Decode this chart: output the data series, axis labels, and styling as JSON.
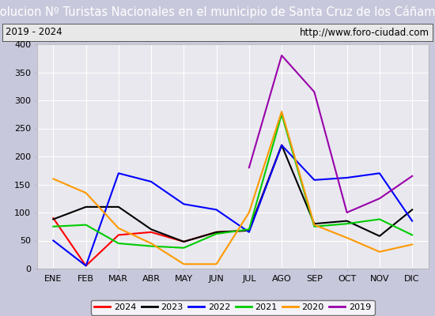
{
  "title": "Evolucion Nº Turistas Nacionales en el municipio de Santa Cruz de los Cáñamos",
  "subtitle_left": "2019 - 2024",
  "subtitle_right": "http://www.foro-ciudad.com",
  "months": [
    "ENE",
    "FEB",
    "MAR",
    "ABR",
    "MAY",
    "JUN",
    "JUL",
    "AGO",
    "SEP",
    "OCT",
    "NOV",
    "DIC"
  ],
  "series": {
    "2024": [
      90,
      5,
      60,
      65,
      48,
      65,
      68,
      220,
      null,
      null,
      null,
      null
    ],
    "2023": [
      88,
      110,
      110,
      70,
      48,
      65,
      68,
      220,
      80,
      85,
      58,
      105
    ],
    "2022": [
      50,
      5,
      170,
      155,
      115,
      105,
      65,
      220,
      158,
      162,
      170,
      85
    ],
    "2021": [
      75,
      78,
      45,
      40,
      37,
      62,
      70,
      275,
      75,
      80,
      88,
      60
    ],
    "2020": [
      160,
      135,
      72,
      45,
      8,
      8,
      100,
      280,
      78,
      55,
      30,
      43
    ],
    "2019": [
      null,
      null,
      null,
      null,
      null,
      null,
      180,
      380,
      315,
      100,
      125,
      165
    ]
  },
  "colors": {
    "2024": "#ff0000",
    "2023": "#000000",
    "2022": "#0000ff",
    "2021": "#00cc00",
    "2020": "#ff9900",
    "2019": "#9900aa"
  },
  "ylim": [
    0,
    400
  ],
  "yticks": [
    0,
    50,
    100,
    150,
    200,
    250,
    300,
    350,
    400
  ],
  "title_bg": "#3399ff",
  "subtitle_bg": "#e8e8e8",
  "plot_bg": "#e8e8ee",
  "outer_bg": "#c8c8dc",
  "title_color": "#ffffff",
  "title_fontsize": 10.5,
  "subtitle_fontsize": 8.5,
  "axis_fontsize": 8,
  "legend_fontsize": 8,
  "grid_color": "#ffffff",
  "linewidth": 1.5
}
